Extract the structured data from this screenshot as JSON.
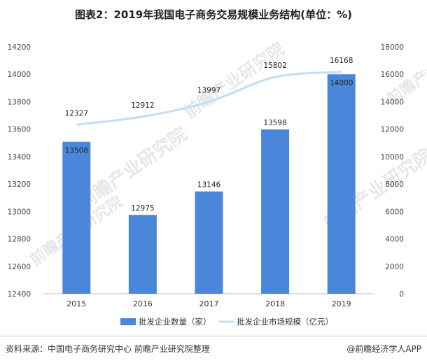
{
  "title": "图表2：2019年我国电子商务交易规模业务结构(单位：%)",
  "source": "资料来源：中国电子商务研究中心 前瞻产业研究院整理",
  "brand": "@前瞻经济学人APP",
  "watermark": "前瞻产业研究院",
  "colors": {
    "bar": "#4A86D9",
    "line": "#C5DDF3",
    "axis": "#BFBFBF"
  },
  "chart_data": {
    "type": "bar",
    "categories": [
      "2015",
      "2016",
      "2017",
      "2018",
      "2019"
    ],
    "series": [
      {
        "name": "批发企业数量（家）",
        "type": "bar",
        "axis": "left",
        "values": [
          13508,
          12975,
          13146,
          13598,
          14000
        ]
      },
      {
        "name": "批发企业市场规模（亿元）",
        "type": "line",
        "axis": "right",
        "values": [
          12327,
          12912,
          13997,
          15802,
          16168
        ]
      }
    ],
    "y_left": {
      "min": 12400,
      "max": 14200,
      "step": 200,
      "ticks": [
        "12400",
        "12600",
        "12800",
        "13000",
        "13200",
        "13400",
        "13600",
        "13800",
        "14000",
        "14200"
      ]
    },
    "y_right": {
      "min": 0,
      "max": 18000,
      "step": 2000,
      "ticks": [
        "0",
        "2000",
        "4000",
        "6000",
        "8000",
        "10000",
        "12000",
        "14000",
        "16000",
        "18000"
      ]
    },
    "legend_position": "bottom-center",
    "grid": false
  }
}
